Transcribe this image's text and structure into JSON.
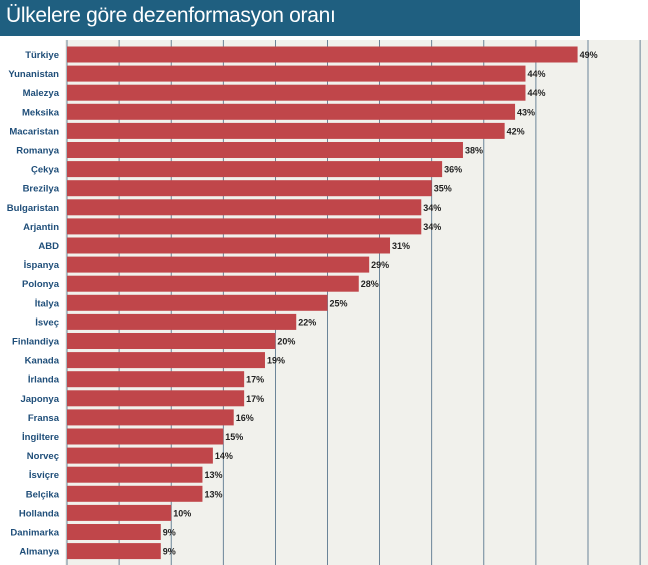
{
  "title": "Ülkelere göre dezenformasyon oranı",
  "colors": {
    "title_bg": "#1f5f80",
    "bar": "#c0464a",
    "plot_bg": "#f1f1ec",
    "grid": "#4a6a84",
    "label": "#1f4e79"
  },
  "chart_data": {
    "type": "bar",
    "orientation": "horizontal",
    "title": "Ülkelere göre dezenformasyon oranı",
    "xlabel": "",
    "ylabel": "",
    "xlim": [
      0,
      55
    ],
    "grid": true,
    "value_suffix": "%",
    "categories": [
      "Türkiye",
      "Yunanistan",
      "Malezya",
      "Meksika",
      "Macaristan",
      "Romanya",
      "Çekya",
      "Brezilya",
      "Bulgaristan",
      "Arjantin",
      "ABD",
      "İspanya",
      "Polonya",
      "İtalya",
      "İsveç",
      "Finlandiya",
      "Kanada",
      "İrlanda",
      "Japonya",
      "Fransa",
      "İngiltere",
      "Norveç",
      "İsviçre",
      "Belçika",
      "Hollanda",
      "Danimarka",
      "Almanya"
    ],
    "values": [
      49,
      44,
      44,
      43,
      42,
      38,
      36,
      35,
      34,
      34,
      31,
      29,
      28,
      25,
      22,
      20,
      19,
      17,
      17,
      16,
      15,
      14,
      13,
      13,
      10,
      9,
      9
    ],
    "labels": [
      "49%",
      "44%",
      "44%",
      "43%",
      "42%",
      "38%",
      "36%",
      "35%",
      "34%",
      "34%",
      "31%",
      "29%",
      "28%",
      "25%",
      "22%",
      "20%",
      "19%",
      "17%",
      "17%",
      "16%",
      "15%",
      "14%",
      "13%",
      "13%",
      "10%",
      "9%",
      "9%"
    ]
  }
}
